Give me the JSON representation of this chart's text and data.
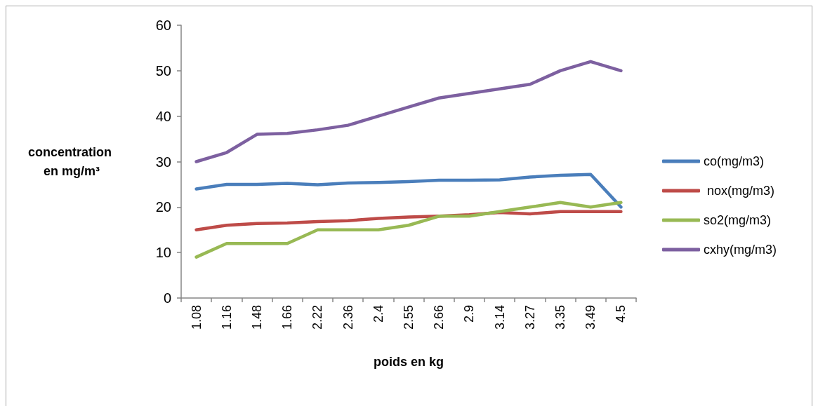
{
  "chart_data": {
    "type": "line",
    "xlabel": "poids en kg",
    "ylabel": "concentration en mg/m³",
    "categories": [
      "1.08",
      "1.16",
      "1.48",
      "1.66",
      "2.22",
      "2.36",
      "2.4",
      "2.55",
      "2.66",
      "2.9",
      "3.14",
      "3.27",
      "3.35",
      "3.49",
      "4.5"
    ],
    "series": [
      {
        "name": "co(mg/m3)",
        "color": "#4a7ebb",
        "values": [
          24,
          25,
          25,
          25.2,
          24.9,
          25.3,
          25.4,
          25.6,
          25.9,
          25.9,
          26,
          26.6,
          27,
          27.2,
          20
        ]
      },
      {
        "name": " nox(mg/m3)",
        "color": "#be4b48",
        "values": [
          15,
          16,
          16.4,
          16.5,
          16.8,
          17,
          17.5,
          17.8,
          18,
          18.3,
          18.8,
          18.5,
          19,
          19,
          19
        ]
      },
      {
        "name": "so2(mg/m3)",
        "color": "#98b954",
        "values": [
          9,
          12,
          12,
          12,
          15,
          15,
          15,
          16,
          18,
          18,
          19,
          20,
          21,
          20,
          21
        ]
      },
      {
        "name": "cxhy(mg/m3)",
        "color": "#7d60a0",
        "values": [
          30,
          32,
          36,
          36.2,
          37,
          38,
          40,
          42,
          44,
          45,
          46,
          47,
          50,
          52,
          50
        ]
      }
    ],
    "ylim": [
      0,
      60
    ],
    "yticks": [
      0,
      10,
      20,
      30,
      40,
      50,
      60
    ],
    "legend": "right",
    "marker": "none"
  }
}
